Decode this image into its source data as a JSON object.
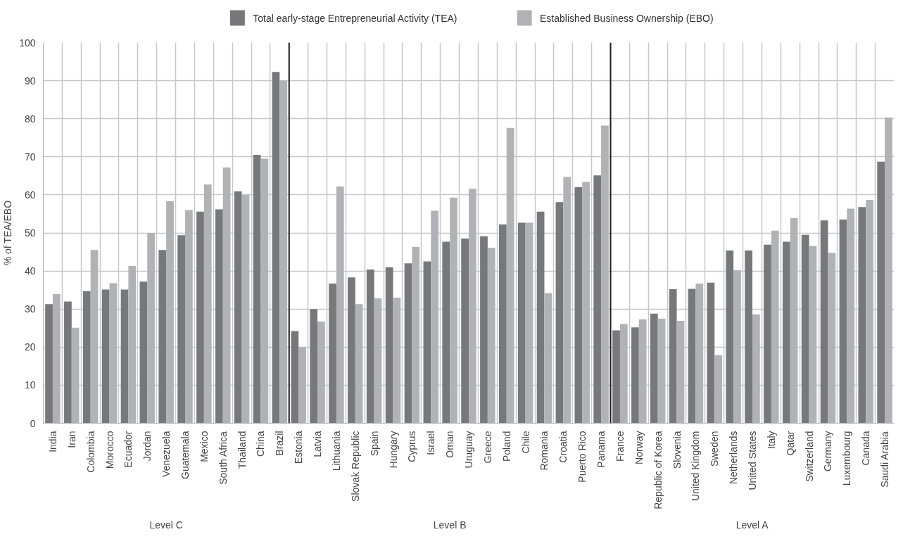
{
  "chart_data": {
    "type": "bar",
    "ylabel": "% of TEA/EBO",
    "categories": [
      "India",
      "Iran",
      "Colombia",
      "Morocco",
      "Ecuador",
      "Jordan",
      "Venezuela",
      "Guatemala",
      "Mexico",
      "South Africa",
      "Thailand",
      "China",
      "Brazil",
      "Estonia",
      "Latvia",
      "Lithuania",
      "Slovak Republic",
      "Spain",
      "Hungary",
      "Cyprus",
      "Israel",
      "Oman",
      "Uruguay",
      "Greece",
      "Poland",
      "Chile",
      "Romania",
      "Croatia",
      "Puerto Rico",
      "Panama",
      "France",
      "Norway",
      "Republic of Korea",
      "Slovenia",
      "United Kingdom",
      "Sweden",
      "Netherlands",
      "United States",
      "Italy",
      "Qatar",
      "Switzerland",
      "Germany",
      "Luxembourg",
      "Canada",
      "Saudi Arabia"
    ],
    "series": [
      {
        "name": "Total early-stage Entrepreneurial Activity (TEA)",
        "color": "#77787b",
        "values": [
          31.3,
          32.0,
          34.7,
          35.1,
          35.1,
          37.2,
          45.5,
          49.4,
          55.6,
          56.2,
          60.9,
          70.5,
          92.3,
          24.2,
          30.0,
          36.7,
          38.3,
          40.4,
          41.0,
          42.0,
          42.5,
          47.7,
          48.5,
          49.1,
          52.2,
          52.7,
          55.6,
          58.1,
          62.0,
          65.1,
          24.4,
          25.2,
          28.8,
          35.2,
          35.3,
          36.9,
          45.4,
          45.4,
          46.9,
          47.7,
          49.5,
          53.3,
          53.5,
          56.8,
          68.7
        ]
      },
      {
        "name": "Established Business Ownership (EBO)",
        "color": "#b1b2b5",
        "values": [
          33.9,
          25.1,
          45.5,
          36.8,
          41.3,
          50.0,
          58.3,
          56.0,
          62.7,
          67.2,
          60.0,
          69.5,
          90.0,
          20.0,
          26.7,
          62.2,
          31.3,
          32.8,
          33.0,
          46.3,
          55.8,
          59.3,
          61.6,
          46.1,
          77.6,
          52.7,
          34.2,
          64.7,
          63.4,
          78.2,
          26.1,
          27.3,
          27.5,
          26.9,
          36.7,
          17.9,
          40.2,
          28.6,
          50.6,
          53.9,
          46.6,
          44.8,
          56.4,
          58.7,
          80.3
        ]
      }
    ],
    "ylim": [
      0,
      100
    ],
    "yticks": [
      0,
      10,
      20,
      30,
      40,
      50,
      60,
      70,
      80,
      90,
      100
    ],
    "grid": true,
    "legend": "top",
    "annotations": [
      "Level C",
      "Level B",
      "Level A"
    ]
  }
}
